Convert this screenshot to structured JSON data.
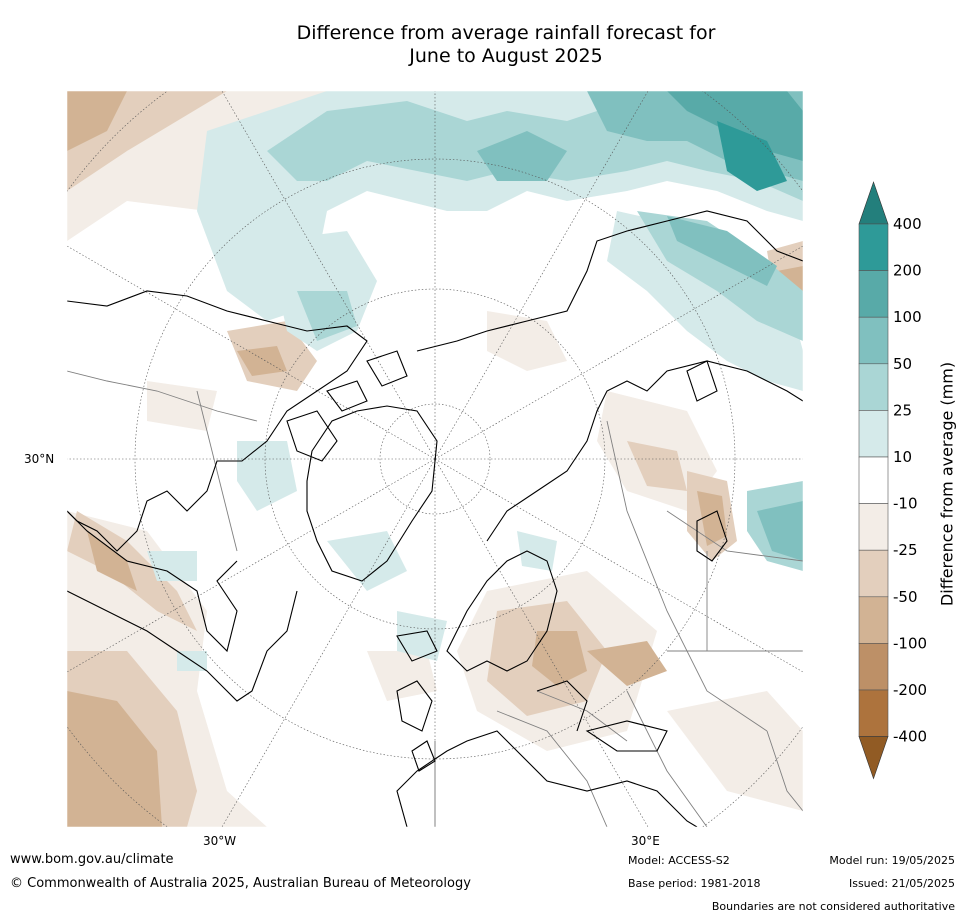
{
  "title_line1": "Difference from average rainfall forecast for",
  "title_line2": "June to August 2025",
  "map": {
    "lat_label": "30°N",
    "lon_labels": [
      "30°W",
      "30°E"
    ],
    "colors": {
      "land_outline": "#000000",
      "border": "#808080",
      "grid": "#555555"
    }
  },
  "colorbar": {
    "title": "Difference from average (mm)",
    "levels": [
      "400",
      "200",
      "100",
      "50",
      "25",
      "10",
      "-10",
      "-25",
      "-50",
      "-100",
      "-200",
      "-400"
    ],
    "colors": [
      "#2e9a98",
      "#58aaa8",
      "#80c0bf",
      "#aad6d5",
      "#d5eaea",
      "#ffffff",
      "#f3ede7",
      "#e3cfbd",
      "#d2b394",
      "#bd9067",
      "#ad733d"
    ],
    "top_extend_color": "#237f7c",
    "bottom_extend_color": "#915b24"
  },
  "footer": {
    "website": "www.bom.gov.au/climate",
    "copyright": "© Commonwealth of Australia 2025, Australian Bureau of Meteorology",
    "model": "Model: ACCESS-S2",
    "base_period": "Base period: 1981-2018",
    "model_run": "Model run: 19/05/2025",
    "issued": "Issued: 21/05/2025",
    "disclaimer": "Boundaries are not considered authoritative"
  }
}
